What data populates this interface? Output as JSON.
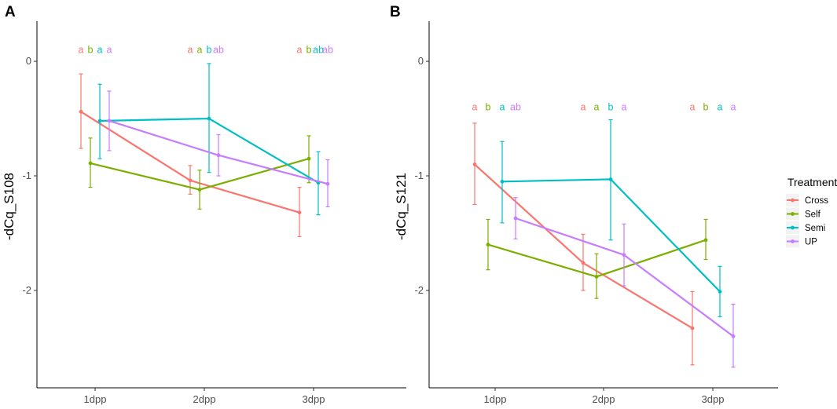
{
  "chart_data": {
    "type": "line",
    "x_positions": [
      "1dpp",
      "2dpp",
      "3dpp"
    ],
    "series_order": [
      "Cross",
      "Self",
      "Semi",
      "UP"
    ],
    "panels": [
      {
        "panel_label": "A",
        "ylabel": "-dCq_S108",
        "xlabel": "",
        "ylim": [
          -2.85,
          0.35
        ],
        "yticks": [
          0,
          -1,
          -2
        ],
        "ytick_labels": [
          "0",
          "-1",
          "-2"
        ],
        "categories": [
          "1dpp",
          "2dpp",
          "3dpp"
        ],
        "letter_y": 0.1,
        "series": [
          {
            "name": "Cross",
            "values": [
              -0.44,
              -1.04,
              -1.32
            ],
            "err_low": [
              -0.76,
              -1.16,
              -1.53
            ],
            "err_high": [
              -0.11,
              -0.91,
              -1.1
            ],
            "letters": [
              "a",
              "a",
              "a"
            ]
          },
          {
            "name": "Self",
            "values": [
              -0.89,
              -1.12,
              -0.85
            ],
            "err_low": [
              -1.1,
              -1.29,
              -1.06
            ],
            "err_high": [
              -0.67,
              -0.95,
              -0.65
            ],
            "letters": [
              "b",
              "a",
              "b"
            ]
          },
          {
            "name": "Semi",
            "values": [
              -0.52,
              -0.5,
              -1.06
            ],
            "err_low": [
              -0.85,
              -0.97,
              -1.34
            ],
            "err_high": [
              -0.2,
              -0.02,
              -0.79
            ],
            "letters": [
              "a",
              "b",
              "ab"
            ]
          },
          {
            "name": "UP",
            "values": [
              -0.52,
              -0.82,
              -1.07
            ],
            "err_low": [
              -0.78,
              -1.0,
              -1.27
            ],
            "err_high": [
              -0.26,
              -0.64,
              -0.86
            ],
            "letters": [
              "a",
              "ab",
              "ab"
            ]
          }
        ]
      },
      {
        "panel_label": "B",
        "ylabel": "-dCq_S121",
        "xlabel": "",
        "ylim": [
          -2.85,
          0.35
        ],
        "yticks": [
          0,
          -1,
          -2
        ],
        "ytick_labels": [
          "0",
          "-1",
          "-2"
        ],
        "categories": [
          "1dpp",
          "2dpp",
          "3dpp"
        ],
        "letter_y": -0.4,
        "series": [
          {
            "name": "Cross",
            "values": [
              -0.9,
              -1.76,
              -2.33
            ],
            "err_low": [
              -1.25,
              -2.0,
              -2.65
            ],
            "err_high": [
              -0.54,
              -1.51,
              -2.01
            ],
            "letters": [
              "a",
              "a",
              "a"
            ]
          },
          {
            "name": "Self",
            "values": [
              -1.6,
              -1.88,
              -1.56
            ],
            "err_low": [
              -1.82,
              -2.07,
              -1.73
            ],
            "err_high": [
              -1.38,
              -1.68,
              -1.38
            ],
            "letters": [
              "b",
              "a",
              "b"
            ]
          },
          {
            "name": "Semi",
            "values": [
              -1.05,
              -1.03,
              -2.01
            ],
            "err_low": [
              -1.41,
              -1.56,
              -2.23
            ],
            "err_high": [
              -0.7,
              -0.51,
              -1.79
            ],
            "letters": [
              "a",
              "b",
              "a"
            ]
          },
          {
            "name": "UP",
            "values": [
              -1.37,
              -1.69,
              -2.4
            ],
            "err_low": [
              -1.55,
              -1.96,
              -2.67
            ],
            "err_high": [
              -1.19,
              -1.42,
              -2.12
            ],
            "letters": [
              "ab",
              "a",
              "a"
            ]
          }
        ]
      }
    ],
    "legend": {
      "title": "Treatment",
      "placement": "right",
      "entries": [
        "Cross",
        "Self",
        "Semi",
        "UP"
      ]
    },
    "colors": {
      "Cross": "#F8766D",
      "Self": "#7CAE00",
      "Semi": "#00BFC4",
      "UP": "#C77CFF"
    },
    "grid": false
  }
}
